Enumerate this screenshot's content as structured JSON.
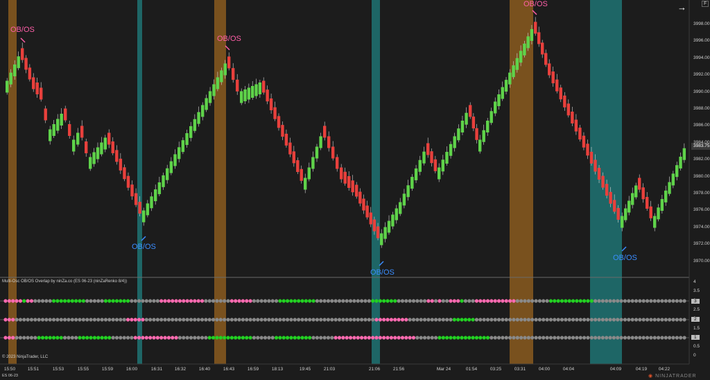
{
  "colors": {
    "background": "#1c1c1c",
    "up_candle": "#5fd34a",
    "down_candle": "#e8403c",
    "zone_orange": "#8a5a1e",
    "zone_teal": "#1e7373",
    "obos_pink": "#ff5fa8",
    "obos_blue": "#3a8dff",
    "dot_pink": "#ff6ab0",
    "dot_green": "#22d122",
    "dot_gray": "#8a8a8a"
  },
  "header": {
    "symbol_tag": "ES 06-23",
    "panel_menu": "F",
    "arrow_icon": "arrow-right-icon"
  },
  "price_axis": {
    "ticks": [
      "3998.00",
      "3996.00",
      "3994.00",
      "3992.00",
      "3990.00",
      "3988.00",
      "3986.00",
      "3984.00",
      "3982.00",
      "3980.00",
      "3978.00",
      "3976.00",
      "3974.00",
      "3972.00",
      "3970.00"
    ],
    "current_price": "3983.75"
  },
  "time_axis": {
    "ticks": [
      "15:50",
      "15:51",
      "15:53",
      "15:55",
      "15:59",
      "16:00",
      "16:31",
      "16:32",
      "16:40",
      "16:43",
      "16:59",
      "18:13",
      "19:45",
      "21:03",
      "21:06",
      "21:56",
      "Mar 24",
      "01:54",
      "03:25",
      "03:31",
      "04:00",
      "04:04",
      "04:09",
      "04:19",
      "04:22"
    ]
  },
  "annotations": {
    "label": "OB/OS"
  },
  "indicator": {
    "title": "Multi-Osc OB/OS Overlap by ninZa.co (ES 06-23 (ninZaRenko 8/4))",
    "axis_ticks": [
      "4",
      "3.5",
      "3",
      "2.5",
      "2",
      "1.5",
      "1",
      "0.5",
      "0"
    ],
    "row_tags": [
      "3",
      "2",
      "1"
    ]
  },
  "footer": {
    "copyright": "© 2023 NinjaTrader, LLC",
    "watermark": "NINJATRADER"
  }
}
